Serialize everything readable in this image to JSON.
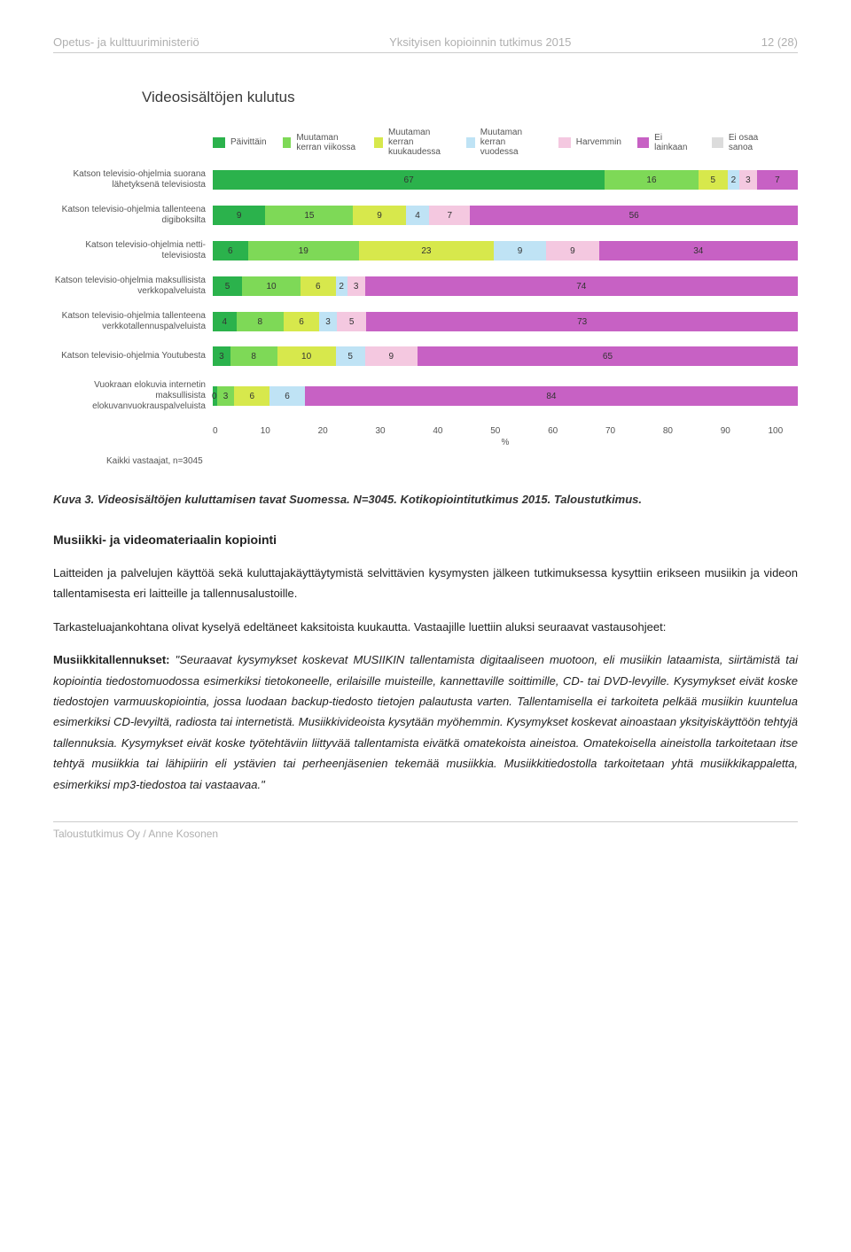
{
  "header": {
    "left": "Opetus- ja kulttuuriministeriö",
    "center": "Yksityisen kopioinnin tutkimus 2015",
    "right": "12 (28)"
  },
  "chart": {
    "title": "Videosisältöjen kulutus",
    "legend": [
      {
        "label": "Päivittäin",
        "color": "#2bb24c"
      },
      {
        "label": "Muutaman kerran viikossa",
        "color": "#7ed957"
      },
      {
        "label": "Muutaman kerran kuukaudessa",
        "color": "#d7e84c"
      },
      {
        "label": "Muutaman kerran vuodessa",
        "color": "#bfe3f5"
      },
      {
        "label": "Harvemmin",
        "color": "#f4c8e0"
      },
      {
        "label": "Ei lainkaan",
        "color": "#c761c4"
      },
      {
        "label": "Ei osaa sanoa",
        "color": "#dcdcdc"
      }
    ],
    "xmax": 100,
    "xtick_step": 10,
    "xlabel": "%",
    "rows": [
      {
        "label": "Katson televisio-ohjelmia suorana lähetyksenä televisiosta",
        "values": [
          67,
          16,
          5,
          2,
          3,
          7,
          0
        ]
      },
      {
        "label": "Katson televisio-ohjelmia tallenteena digiboksilta",
        "values": [
          9,
          15,
          9,
          4,
          7,
          56,
          0
        ]
      },
      {
        "label": "Katson televisio-ohjelmia netti-televisiosta",
        "values": [
          6,
          19,
          23,
          9,
          9,
          34,
          0
        ]
      },
      {
        "label": "Katson televisio-ohjelmia maksullisista verkkopalveluista",
        "values": [
          5,
          10,
          6,
          2,
          3,
          74,
          0
        ]
      },
      {
        "label": "Katson televisio-ohjelmia tallenteena verkkotallennuspalveluista",
        "values": [
          4,
          8,
          6,
          3,
          5,
          73,
          0
        ]
      },
      {
        "label": "Katson televisio-ohjelmia Youtubesta",
        "values": [
          3,
          8,
          10,
          5,
          9,
          65,
          0
        ]
      },
      {
        "label": "Vuokraan elokuvia internetin maksullisista elokuvanvuokrauspalveluista",
        "values": [
          0,
          3,
          6,
          6,
          0,
          84,
          0
        ],
        "leading_zero_as_half": true
      }
    ],
    "footer": "Kaikki vastaajat, n=3045",
    "value_text_color": "#333333",
    "label_fontsize": 10,
    "legend_fontsize": 10
  },
  "caption": "Kuva 3. Videosisältöjen kuluttamisen tavat Suomessa. N=3045. Kotikopiointitutkimus 2015. Taloustutkimus.",
  "section_heading": "Musiikki- ja videomateriaalin kopiointi",
  "paragraphs": {
    "p1": "Laitteiden ja palvelujen käyttöä sekä kuluttajakäyttäytymistä selvittävien kysymysten jälkeen tutkimuksessa kysyttiin erikseen musiikin ja videon tallentamisesta eri laitteille ja tallennusalustoille.",
    "p2": "Tarkasteluajankohtana olivat kyselyä edeltäneet kaksitoista kuukautta. Vastaajille luettiin aluksi seuraavat vastausohjeet:",
    "p3_lead_bold": "Musiikkitallennukset:",
    "p3_quote": "\"Seuraavat kysymykset koskevat MUSIIKIN tallentamista digitaaliseen muotoon, eli musiikin lataamista, siirtämistä tai kopiointia tiedostomuodossa esimerkiksi tietokoneelle, erilaisille muisteille, kannettaville soittimille, CD- tai DVD-levyille. Kysymykset eivät koske tiedostojen varmuuskopiointia, jossa luodaan backup-tiedosto tietojen palautusta varten. Tallentamisella ei tarkoiteta pelkää musiikin kuuntelua esimerkiksi CD-levyiltä, radiosta tai internetistä. Musiikkivideoista kysytään myöhemmin. Kysymykset koskevat ainoastaan yksityiskäyttöön tehtyjä tallennuksia. Kysymykset eivät koske työtehtäviin liittyvää tallentamista eivätkä omatekoista aineistoa. Omatekoisella aineistolla tarkoitetaan itse tehtyä musiikkia tai lähipiirin eli ystävien tai perheenjäsenien tekemää musiikkia. Musiikkitiedostolla tarkoitetaan yhtä musiikkikappaletta, esimerkiksi mp3-tiedostoa tai vastaavaa.\""
  },
  "footer": "Taloustutkimus Oy / Anne Kosonen"
}
